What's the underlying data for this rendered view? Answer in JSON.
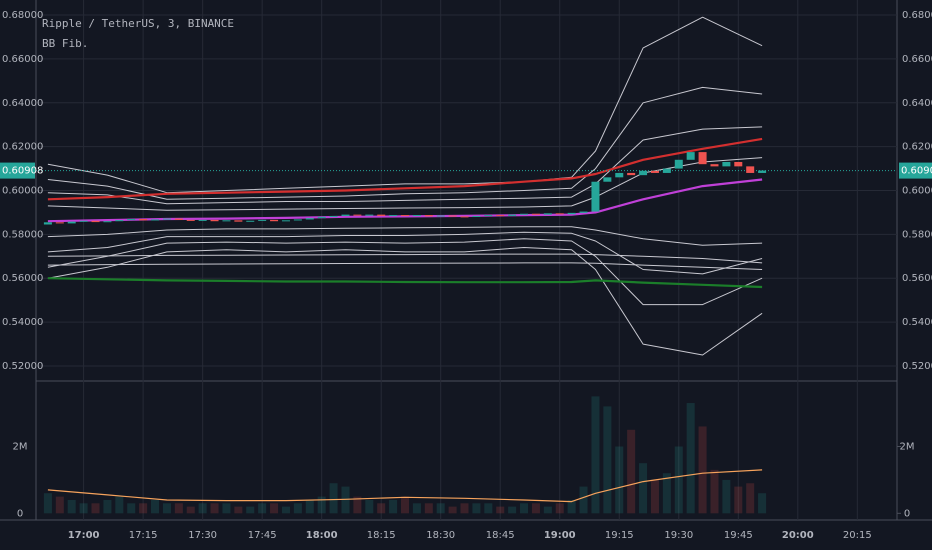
{
  "chart_data": {
    "type": "candlestick",
    "title": "Ripple / TetherUS, 3, BINANCE",
    "subtitle": "BB Fib.",
    "x": [
      "16:51",
      "16:54",
      "16:57",
      "17:00",
      "17:03",
      "17:06",
      "17:09",
      "17:12",
      "17:15",
      "17:18",
      "17:21",
      "17:24",
      "17:27",
      "17:30",
      "17:33",
      "17:36",
      "17:39",
      "17:42",
      "17:45",
      "17:48",
      "17:51",
      "17:54",
      "17:57",
      "18:00",
      "18:03",
      "18:06",
      "18:09",
      "18:12",
      "18:15",
      "18:18",
      "18:21",
      "18:24",
      "18:27",
      "18:30",
      "18:33",
      "18:36",
      "18:39",
      "18:42",
      "18:45",
      "18:48",
      "18:51",
      "18:54",
      "18:57",
      "19:00",
      "19:03",
      "19:06",
      "19:09",
      "19:12",
      "19:15",
      "19:18",
      "19:21",
      "19:24",
      "19:27",
      "19:30",
      "19:33",
      "19:36",
      "19:39",
      "19:42",
      "19:45",
      "19:48",
      "19:51"
    ],
    "open": [
      0.5845,
      0.5855,
      0.585,
      0.5858,
      0.5862,
      0.5856,
      0.586,
      0.5865,
      0.587,
      0.5864,
      0.5868,
      0.5872,
      0.5866,
      0.5862,
      0.5866,
      0.586,
      0.5864,
      0.5858,
      0.5862,
      0.5866,
      0.586,
      0.5864,
      0.5868,
      0.5874,
      0.588,
      0.5884,
      0.589,
      0.5886,
      0.589,
      0.5884,
      0.5888,
      0.5884,
      0.5888,
      0.5882,
      0.5886,
      0.5882,
      0.588,
      0.5884,
      0.5888,
      0.5884,
      0.589,
      0.5894,
      0.589,
      0.5896,
      0.5892,
      0.5898,
      0.5904,
      0.604,
      0.606,
      0.608,
      0.607,
      0.609,
      0.608,
      0.61,
      0.614,
      0.6175,
      0.612,
      0.611,
      0.613,
      0.611,
      0.608
    ],
    "close": [
      0.5855,
      0.585,
      0.5858,
      0.5862,
      0.5856,
      0.586,
      0.5865,
      0.587,
      0.5864,
      0.5868,
      0.5872,
      0.5866,
      0.5862,
      0.5866,
      0.586,
      0.5864,
      0.5858,
      0.5862,
      0.5866,
      0.586,
      0.5864,
      0.5868,
      0.5874,
      0.588,
      0.5884,
      0.589,
      0.5886,
      0.589,
      0.5884,
      0.5888,
      0.5884,
      0.5888,
      0.5882,
      0.5886,
      0.5882,
      0.588,
      0.5884,
      0.5888,
      0.5884,
      0.589,
      0.5894,
      0.589,
      0.5896,
      0.5892,
      0.5898,
      0.5904,
      0.604,
      0.606,
      0.608,
      0.607,
      0.609,
      0.608,
      0.61,
      0.614,
      0.6175,
      0.612,
      0.611,
      0.613,
      0.611,
      0.608,
      0.6091
    ],
    "color_up": "#26a69a",
    "color_down": "#ef5350",
    "xlim": [
      "16:48",
      "20:25"
    ],
    "xticks": [
      "17:00",
      "17:15",
      "17:30",
      "17:45",
      "18:00",
      "18:15",
      "18:30",
      "18:45",
      "19:00",
      "19:15",
      "19:30",
      "19:45",
      "20:00",
      "20:15"
    ],
    "ylim": [
      0.51316,
      0.68684
    ],
    "yticks": [
      {
        "value": 0.52,
        "label": "0.52000"
      },
      {
        "value": 0.54,
        "label": "0.54000"
      },
      {
        "value": 0.56,
        "label": "0.56000"
      },
      {
        "value": 0.58,
        "label": "0.58000"
      },
      {
        "value": 0.6,
        "label": "0.60000"
      },
      {
        "value": 0.62,
        "label": "0.62000"
      },
      {
        "value": 0.64,
        "label": "0.64000"
      },
      {
        "value": 0.66,
        "label": "0.66000"
      },
      {
        "value": 0.68,
        "label": "0.68000"
      }
    ],
    "last_price": {
      "value": 0.60908,
      "label": "0.60908"
    },
    "last_price_color": "#26a69a",
    "band_x": [
      "16:51",
      "17:06",
      "17:21",
      "17:36",
      "17:51",
      "18:06",
      "18:21",
      "18:36",
      "18:51",
      "19:03",
      "19:09",
      "19:21",
      "19:36",
      "19:51"
    ],
    "bands": [
      {
        "color": "#c8c8d0",
        "values": [
          0.612,
          0.607,
          0.599,
          0.6,
          0.601,
          0.602,
          0.603,
          0.603,
          0.604,
          0.606,
          0.618,
          0.665,
          0.679,
          0.666
        ]
      },
      {
        "color": "#c8c8d0",
        "values": [
          0.56,
          0.565,
          0.572,
          0.573,
          0.572,
          0.573,
          0.572,
          0.572,
          0.574,
          0.573,
          0.564,
          0.53,
          0.525,
          0.544
        ]
      },
      {
        "color": "#c8c8d0",
        "values": [
          0.605,
          0.602,
          0.596,
          0.5965,
          0.597,
          0.5975,
          0.5985,
          0.599,
          0.6,
          0.601,
          0.61,
          0.64,
          0.647,
          0.644
        ]
      },
      {
        "color": "#c8c8d0",
        "values": [
          0.565,
          0.57,
          0.576,
          0.5765,
          0.576,
          0.5765,
          0.576,
          0.5765,
          0.578,
          0.577,
          0.57,
          0.548,
          0.548,
          0.56
        ]
      },
      {
        "color": "#c8c8d0",
        "values": [
          0.599,
          0.598,
          0.594,
          0.5945,
          0.595,
          0.595,
          0.5955,
          0.596,
          0.5965,
          0.597,
          0.603,
          0.623,
          0.628,
          0.629
        ]
      },
      {
        "color": "#c8c8d0",
        "values": [
          0.572,
          0.574,
          0.579,
          0.579,
          0.579,
          0.5795,
          0.5795,
          0.58,
          0.581,
          0.5805,
          0.577,
          0.564,
          0.562,
          0.569
        ]
      },
      {
        "color": "#c8c8d0",
        "values": [
          0.593,
          0.592,
          0.591,
          0.5912,
          0.5915,
          0.5918,
          0.592,
          0.5922,
          0.5925,
          0.593,
          0.597,
          0.608,
          0.613,
          0.615
        ]
      },
      {
        "color": "#c8c8d0",
        "values": [
          0.579,
          0.58,
          0.582,
          0.5825,
          0.5825,
          0.5828,
          0.583,
          0.5832,
          0.5835,
          0.5835,
          0.582,
          0.578,
          0.575,
          0.576
        ]
      },
      {
        "color": "#c8c8d0",
        "values": [
          0.57,
          0.5702,
          0.5704,
          0.5705,
          0.5706,
          0.5707,
          0.5708,
          0.5709,
          0.571,
          0.571,
          0.5708,
          0.57,
          0.569,
          0.567
        ]
      },
      {
        "color": "#c8c8d0",
        "values": [
          0.566,
          0.5662,
          0.5664,
          0.5665,
          0.5666,
          0.5667,
          0.5668,
          0.5669,
          0.567,
          0.567,
          0.5668,
          0.566,
          0.565,
          0.564
        ]
      },
      {
        "color": "#d32f2f",
        "values": [
          0.596,
          0.597,
          0.5985,
          0.599,
          0.5995,
          0.6,
          0.601,
          0.602,
          0.604,
          0.6055,
          0.6075,
          0.614,
          0.619,
          0.6235
        ]
      },
      {
        "color": "#1b7e2a",
        "values": [
          0.56,
          0.5595,
          0.559,
          0.5588,
          0.5585,
          0.5585,
          0.5583,
          0.5582,
          0.5582,
          0.5583,
          0.559,
          0.558,
          0.557,
          0.556
        ]
      },
      {
        "color": "#c040d8",
        "values": [
          0.586,
          0.5865,
          0.587,
          0.5872,
          0.5875,
          0.588,
          0.5882,
          0.5884,
          0.5888,
          0.589,
          0.59,
          0.596,
          0.602,
          0.605
        ]
      }
    ],
    "volume": {
      "values": [
        600000,
        500000,
        400000,
        300000,
        300000,
        400000,
        500000,
        300000,
        300000,
        400000,
        300000,
        300000,
        200000,
        300000,
        300000,
        300000,
        200000,
        200000,
        300000,
        300000,
        200000,
        300000,
        400000,
        500000,
        900000,
        800000,
        500000,
        400000,
        300000,
        400000,
        500000,
        300000,
        300000,
        300000,
        200000,
        300000,
        300000,
        300000,
        200000,
        200000,
        300000,
        300000,
        200000,
        300000,
        400000,
        800000,
        3500000,
        3200000,
        2000000,
        2500000,
        1500000,
        1000000,
        1200000,
        2000000,
        3300000,
        2600000,
        1300000,
        1000000,
        800000,
        900000,
        600000
      ],
      "ylim": [
        -200000,
        3900000
      ],
      "yticks": [
        0,
        {
          "value": 2000000,
          "label": "2M"
        }
      ],
      "ma_values": [
        700000,
        550000,
        400000,
        380000,
        380000,
        420000,
        480000,
        450000,
        400000,
        350000,
        600000,
        950000,
        1200000,
        1300000
      ],
      "ma_color": "#f7a35c"
    }
  }
}
